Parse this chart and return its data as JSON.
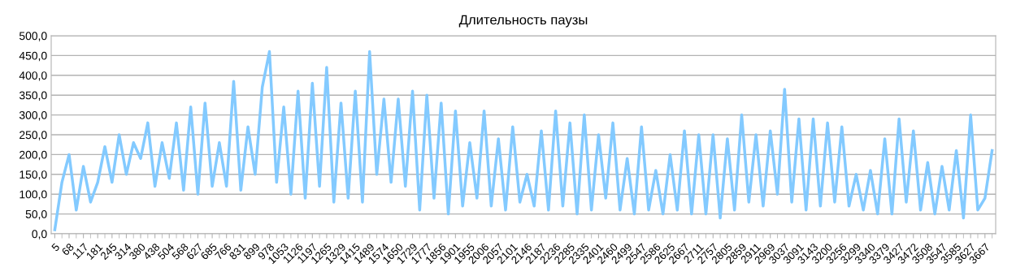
{
  "chart_data": {
    "type": "line",
    "title": "Длительность паузы",
    "categories": [
      "5",
      null,
      "68",
      null,
      "117",
      null,
      "181",
      null,
      "245",
      null,
      "314",
      null,
      "380",
      null,
      "438",
      null,
      "504",
      null,
      "568",
      null,
      "627",
      null,
      "685",
      null,
      "766",
      null,
      "831",
      null,
      "899",
      null,
      "978",
      null,
      "1053",
      null,
      "1126",
      null,
      "1197",
      null,
      "1265",
      null,
      "1329",
      null,
      "1415",
      null,
      "1489",
      null,
      "1574",
      null,
      "1650",
      null,
      "1729",
      null,
      "1777",
      null,
      "1856",
      null,
      "1901",
      null,
      "1955",
      null,
      "2006",
      null,
      "2057",
      null,
      "2101",
      null,
      "2146",
      null,
      "2187",
      null,
      "2236",
      null,
      "2285",
      null,
      "2335",
      null,
      "2401",
      null,
      "2460",
      null,
      "2499",
      null,
      "2547",
      null,
      "2586",
      null,
      "2625",
      null,
      "2667",
      null,
      "2711",
      null,
      "2757",
      null,
      "2805",
      null,
      "2859",
      null,
      "2911",
      null,
      "2969",
      null,
      "3037",
      null,
      "3091",
      null,
      "3143",
      null,
      "3200",
      null,
      "3256",
      null,
      "3299",
      null,
      "3340",
      null,
      "3379",
      null,
      "3427",
      null,
      "3472",
      null,
      "3508",
      null,
      "3547",
      null,
      "3585",
      null,
      "3627",
      null,
      "3667",
      null
    ],
    "series": [
      {
        "color": "#83caff",
        "values": [
          10,
          130,
          200,
          60,
          170,
          80,
          130,
          220,
          130,
          250,
          150,
          230,
          190,
          280,
          120,
          230,
          140,
          280,
          110,
          320,
          100,
          330,
          120,
          230,
          120,
          385,
          110,
          270,
          150,
          370,
          460,
          130,
          320,
          100,
          360,
          90,
          380,
          120,
          420,
          80,
          330,
          90,
          360,
          80,
          460,
          150,
          340,
          130,
          340,
          120,
          360,
          60,
          350,
          90,
          330,
          50,
          310,
          70,
          230,
          90,
          310,
          70,
          240,
          60,
          270,
          80,
          150,
          70,
          260,
          60,
          310,
          70,
          280,
          50,
          300,
          60,
          250,
          90,
          280,
          60,
          190,
          50,
          270,
          60,
          160,
          50,
          200,
          60,
          260,
          50,
          250,
          50,
          250,
          40,
          240,
          60,
          300,
          80,
          250,
          70,
          260,
          100,
          365,
          80,
          290,
          60,
          290,
          70,
          280,
          80,
          270,
          70,
          150,
          60,
          160,
          50,
          240,
          50,
          290,
          80,
          260,
          60,
          180,
          50,
          170,
          60,
          210,
          40,
          300,
          60,
          90,
          210
        ]
      }
    ],
    "ylim": [
      0,
      500
    ],
    "yticks": [
      {
        "value": 0,
        "label": "0,0"
      },
      {
        "value": 50,
        "label": "50,0"
      },
      {
        "value": 100,
        "label": "100,0"
      },
      {
        "value": 150,
        "label": "150,0"
      },
      {
        "value": 200,
        "label": "200,0"
      },
      {
        "value": 250,
        "label": "250,0"
      },
      {
        "value": 300,
        "label": "300,0"
      },
      {
        "value": 350,
        "label": "350,0"
      },
      {
        "value": 400,
        "label": "400,0"
      },
      {
        "value": 450,
        "label": "450,0"
      },
      {
        "value": 500,
        "label": "500,0"
      }
    ],
    "grid": "y",
    "marker": "none",
    "line_style": "solid"
  }
}
